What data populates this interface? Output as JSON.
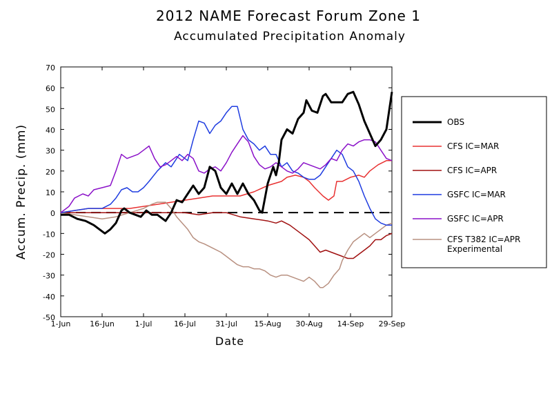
{
  "chart_data": {
    "type": "line",
    "title": "2012 NAME Forecast Forum Zone 1",
    "subtitle": "Accumulated Precipitation Anomaly",
    "xlabel": "Date",
    "ylabel": "Accum. Precip. (mm)",
    "ylim": [
      -50,
      70
    ],
    "yticks": [
      -50,
      -40,
      -30,
      -20,
      -10,
      0,
      10,
      20,
      30,
      40,
      50,
      60,
      70
    ],
    "xlim": [
      0,
      120
    ],
    "xticks": [
      {
        "x": 0,
        "label": "1-Jun"
      },
      {
        "x": 15,
        "label": "16-Jun"
      },
      {
        "x": 30,
        "label": "1-Jul"
      },
      {
        "x": 45,
        "label": "16-Jul"
      },
      {
        "x": 60,
        "label": "31-Jul"
      },
      {
        "x": 75,
        "label": "15-Aug"
      },
      {
        "x": 90,
        "label": "30-Aug"
      },
      {
        "x": 105,
        "label": "14-Sep"
      },
      {
        "x": 120,
        "label": "29-Sep"
      }
    ],
    "zero_line": "dashed",
    "legend_position": "right",
    "series": [
      {
        "name": "OBS",
        "color": "#000000",
        "width": 3,
        "points": [
          [
            0,
            -1
          ],
          [
            3,
            -1
          ],
          [
            6,
            -3
          ],
          [
            9,
            -4
          ],
          [
            12,
            -6
          ],
          [
            15,
            -9
          ],
          [
            16,
            -10
          ],
          [
            18,
            -8
          ],
          [
            20,
            -5
          ],
          [
            22,
            1
          ],
          [
            23,
            2
          ],
          [
            25,
            0
          ],
          [
            27,
            -1
          ],
          [
            29,
            -2
          ],
          [
            31,
            1
          ],
          [
            33,
            -1
          ],
          [
            35,
            -1
          ],
          [
            37,
            -3
          ],
          [
            38,
            -4
          ],
          [
            40,
            0
          ],
          [
            42,
            6
          ],
          [
            44,
            5
          ],
          [
            46,
            9
          ],
          [
            48,
            13
          ],
          [
            50,
            9
          ],
          [
            52,
            12
          ],
          [
            54,
            22
          ],
          [
            56,
            20
          ],
          [
            58,
            12
          ],
          [
            60,
            9
          ],
          [
            62,
            14
          ],
          [
            64,
            9
          ],
          [
            66,
            14
          ],
          [
            68,
            9
          ],
          [
            70,
            6
          ],
          [
            72,
            1
          ],
          [
            73,
            0
          ],
          [
            75,
            14
          ],
          [
            77,
            22
          ],
          [
            78,
            18
          ],
          [
            79,
            24
          ],
          [
            80,
            35
          ],
          [
            82,
            40
          ],
          [
            84,
            38
          ],
          [
            86,
            45
          ],
          [
            88,
            48
          ],
          [
            89,
            54
          ],
          [
            91,
            49
          ],
          [
            93,
            48
          ],
          [
            95,
            56
          ],
          [
            96,
            57
          ],
          [
            98,
            53
          ],
          [
            100,
            53
          ],
          [
            102,
            53
          ],
          [
            104,
            57
          ],
          [
            106,
            58
          ],
          [
            108,
            52
          ],
          [
            110,
            44
          ],
          [
            112,
            38
          ],
          [
            114,
            32
          ],
          [
            116,
            35
          ],
          [
            118,
            40
          ],
          [
            120,
            58
          ]
        ]
      },
      {
        "name": "CFS IC=MAR",
        "color": "#e83030",
        "width": 1.5,
        "points": [
          [
            0,
            0
          ],
          [
            5,
            1
          ],
          [
            10,
            2
          ],
          [
            15,
            2
          ],
          [
            20,
            2
          ],
          [
            25,
            2
          ],
          [
            30,
            3
          ],
          [
            35,
            4
          ],
          [
            40,
            5
          ],
          [
            45,
            6
          ],
          [
            50,
            7
          ],
          [
            55,
            8
          ],
          [
            60,
            8
          ],
          [
            65,
            8
          ],
          [
            70,
            10
          ],
          [
            75,
            13
          ],
          [
            80,
            15
          ],
          [
            82,
            17
          ],
          [
            85,
            18
          ],
          [
            88,
            17
          ],
          [
            90,
            15
          ],
          [
            92,
            12
          ],
          [
            95,
            8
          ],
          [
            97,
            6
          ],
          [
            99,
            8
          ],
          [
            100,
            15
          ],
          [
            102,
            15
          ],
          [
            105,
            17
          ],
          [
            108,
            18
          ],
          [
            110,
            17
          ],
          [
            112,
            20
          ],
          [
            115,
            23
          ],
          [
            118,
            25
          ],
          [
            120,
            25
          ]
        ]
      },
      {
        "name": "CFS IC=APR",
        "color": "#a01010",
        "width": 1.5,
        "points": [
          [
            0,
            0
          ],
          [
            10,
            0
          ],
          [
            20,
            0
          ],
          [
            30,
            0
          ],
          [
            40,
            0
          ],
          [
            45,
            0
          ],
          [
            50,
            -1
          ],
          [
            55,
            0
          ],
          [
            60,
            0
          ],
          [
            65,
            -2
          ],
          [
            70,
            -3
          ],
          [
            75,
            -4
          ],
          [
            78,
            -5
          ],
          [
            80,
            -4
          ],
          [
            83,
            -6
          ],
          [
            85,
            -8
          ],
          [
            87,
            -10
          ],
          [
            90,
            -13
          ],
          [
            92,
            -16
          ],
          [
            94,
            -19
          ],
          [
            96,
            -18
          ],
          [
            98,
            -19
          ],
          [
            100,
            -20
          ],
          [
            102,
            -21
          ],
          [
            104,
            -22
          ],
          [
            106,
            -22
          ],
          [
            108,
            -20
          ],
          [
            110,
            -18
          ],
          [
            112,
            -16
          ],
          [
            114,
            -13
          ],
          [
            116,
            -13
          ],
          [
            118,
            -11
          ],
          [
            120,
            -10
          ]
        ]
      },
      {
        "name": "GSFC IC=MAR",
        "color": "#1e3ce0",
        "width": 1.5,
        "points": [
          [
            0,
            0
          ],
          [
            5,
            1
          ],
          [
            10,
            2
          ],
          [
            15,
            2
          ],
          [
            18,
            4
          ],
          [
            20,
            7
          ],
          [
            22,
            11
          ],
          [
            24,
            12
          ],
          [
            26,
            10
          ],
          [
            28,
            10
          ],
          [
            30,
            12
          ],
          [
            32,
            15
          ],
          [
            35,
            20
          ],
          [
            38,
            24
          ],
          [
            40,
            22
          ],
          [
            43,
            28
          ],
          [
            46,
            25
          ],
          [
            48,
            35
          ],
          [
            50,
            44
          ],
          [
            52,
            43
          ],
          [
            54,
            38
          ],
          [
            56,
            42
          ],
          [
            58,
            44
          ],
          [
            60,
            48
          ],
          [
            62,
            51
          ],
          [
            64,
            51
          ],
          [
            66,
            40
          ],
          [
            68,
            35
          ],
          [
            70,
            33
          ],
          [
            72,
            30
          ],
          [
            74,
            32
          ],
          [
            76,
            28
          ],
          [
            78,
            28
          ],
          [
            80,
            22
          ],
          [
            82,
            24
          ],
          [
            84,
            20
          ],
          [
            86,
            19
          ],
          [
            88,
            17
          ],
          [
            90,
            16
          ],
          [
            92,
            16
          ],
          [
            94,
            18
          ],
          [
            96,
            22
          ],
          [
            98,
            26
          ],
          [
            100,
            30
          ],
          [
            102,
            28
          ],
          [
            104,
            22
          ],
          [
            106,
            20
          ],
          [
            108,
            15
          ],
          [
            110,
            8
          ],
          [
            112,
            2
          ],
          [
            114,
            -3
          ],
          [
            116,
            -5
          ],
          [
            118,
            -6
          ],
          [
            120,
            -6
          ]
        ]
      },
      {
        "name": "GSFC IC=APR",
        "color": "#8a10c8",
        "width": 1.5,
        "points": [
          [
            0,
            0
          ],
          [
            3,
            3
          ],
          [
            5,
            7
          ],
          [
            8,
            9
          ],
          [
            10,
            8
          ],
          [
            12,
            11
          ],
          [
            15,
            12
          ],
          [
            18,
            13
          ],
          [
            20,
            20
          ],
          [
            22,
            28
          ],
          [
            24,
            26
          ],
          [
            26,
            27
          ],
          [
            28,
            28
          ],
          [
            30,
            30
          ],
          [
            32,
            32
          ],
          [
            34,
            26
          ],
          [
            36,
            22
          ],
          [
            38,
            23
          ],
          [
            40,
            25
          ],
          [
            42,
            27
          ],
          [
            44,
            25
          ],
          [
            46,
            28
          ],
          [
            48,
            26
          ],
          [
            50,
            20
          ],
          [
            52,
            19
          ],
          [
            54,
            21
          ],
          [
            56,
            22
          ],
          [
            58,
            20
          ],
          [
            60,
            24
          ],
          [
            62,
            29
          ],
          [
            64,
            33
          ],
          [
            66,
            37
          ],
          [
            68,
            34
          ],
          [
            70,
            27
          ],
          [
            72,
            23
          ],
          [
            74,
            21
          ],
          [
            76,
            22
          ],
          [
            78,
            24
          ],
          [
            80,
            22
          ],
          [
            82,
            20
          ],
          [
            84,
            19
          ],
          [
            86,
            21
          ],
          [
            88,
            24
          ],
          [
            90,
            23
          ],
          [
            92,
            22
          ],
          [
            94,
            21
          ],
          [
            96,
            23
          ],
          [
            98,
            26
          ],
          [
            100,
            25
          ],
          [
            102,
            30
          ],
          [
            104,
            33
          ],
          [
            106,
            32
          ],
          [
            108,
            34
          ],
          [
            110,
            35
          ],
          [
            112,
            35
          ],
          [
            114,
            34
          ],
          [
            116,
            30
          ],
          [
            118,
            26
          ],
          [
            120,
            25
          ]
        ]
      },
      {
        "name": "CFS T382 IC=APR Experimental",
        "color": "#b89080",
        "width": 1.5,
        "points": [
          [
            0,
            0
          ],
          [
            5,
            -1
          ],
          [
            10,
            -2
          ],
          [
            15,
            -3
          ],
          [
            20,
            -2
          ],
          [
            25,
            0
          ],
          [
            30,
            2
          ],
          [
            33,
            4
          ],
          [
            35,
            5
          ],
          [
            38,
            5
          ],
          [
            40,
            2
          ],
          [
            42,
            -2
          ],
          [
            44,
            -5
          ],
          [
            46,
            -8
          ],
          [
            48,
            -12
          ],
          [
            50,
            -14
          ],
          [
            52,
            -15
          ],
          [
            55,
            -17
          ],
          [
            58,
            -19
          ],
          [
            60,
            -21
          ],
          [
            62,
            -23
          ],
          [
            64,
            -25
          ],
          [
            66,
            -26
          ],
          [
            68,
            -26
          ],
          [
            70,
            -27
          ],
          [
            72,
            -27
          ],
          [
            74,
            -28
          ],
          [
            76,
            -30
          ],
          [
            78,
            -31
          ],
          [
            80,
            -30
          ],
          [
            82,
            -30
          ],
          [
            84,
            -31
          ],
          [
            86,
            -32
          ],
          [
            88,
            -33
          ],
          [
            90,
            -31
          ],
          [
            92,
            -33
          ],
          [
            94,
            -36
          ],
          [
            95,
            -36
          ],
          [
            97,
            -34
          ],
          [
            99,
            -30
          ],
          [
            101,
            -27
          ],
          [
            102,
            -23
          ],
          [
            104,
            -18
          ],
          [
            106,
            -14
          ],
          [
            108,
            -12
          ],
          [
            110,
            -10
          ],
          [
            112,
            -12
          ],
          [
            114,
            -10
          ],
          [
            116,
            -8
          ],
          [
            118,
            -6
          ],
          [
            120,
            -5
          ]
        ]
      }
    ]
  }
}
